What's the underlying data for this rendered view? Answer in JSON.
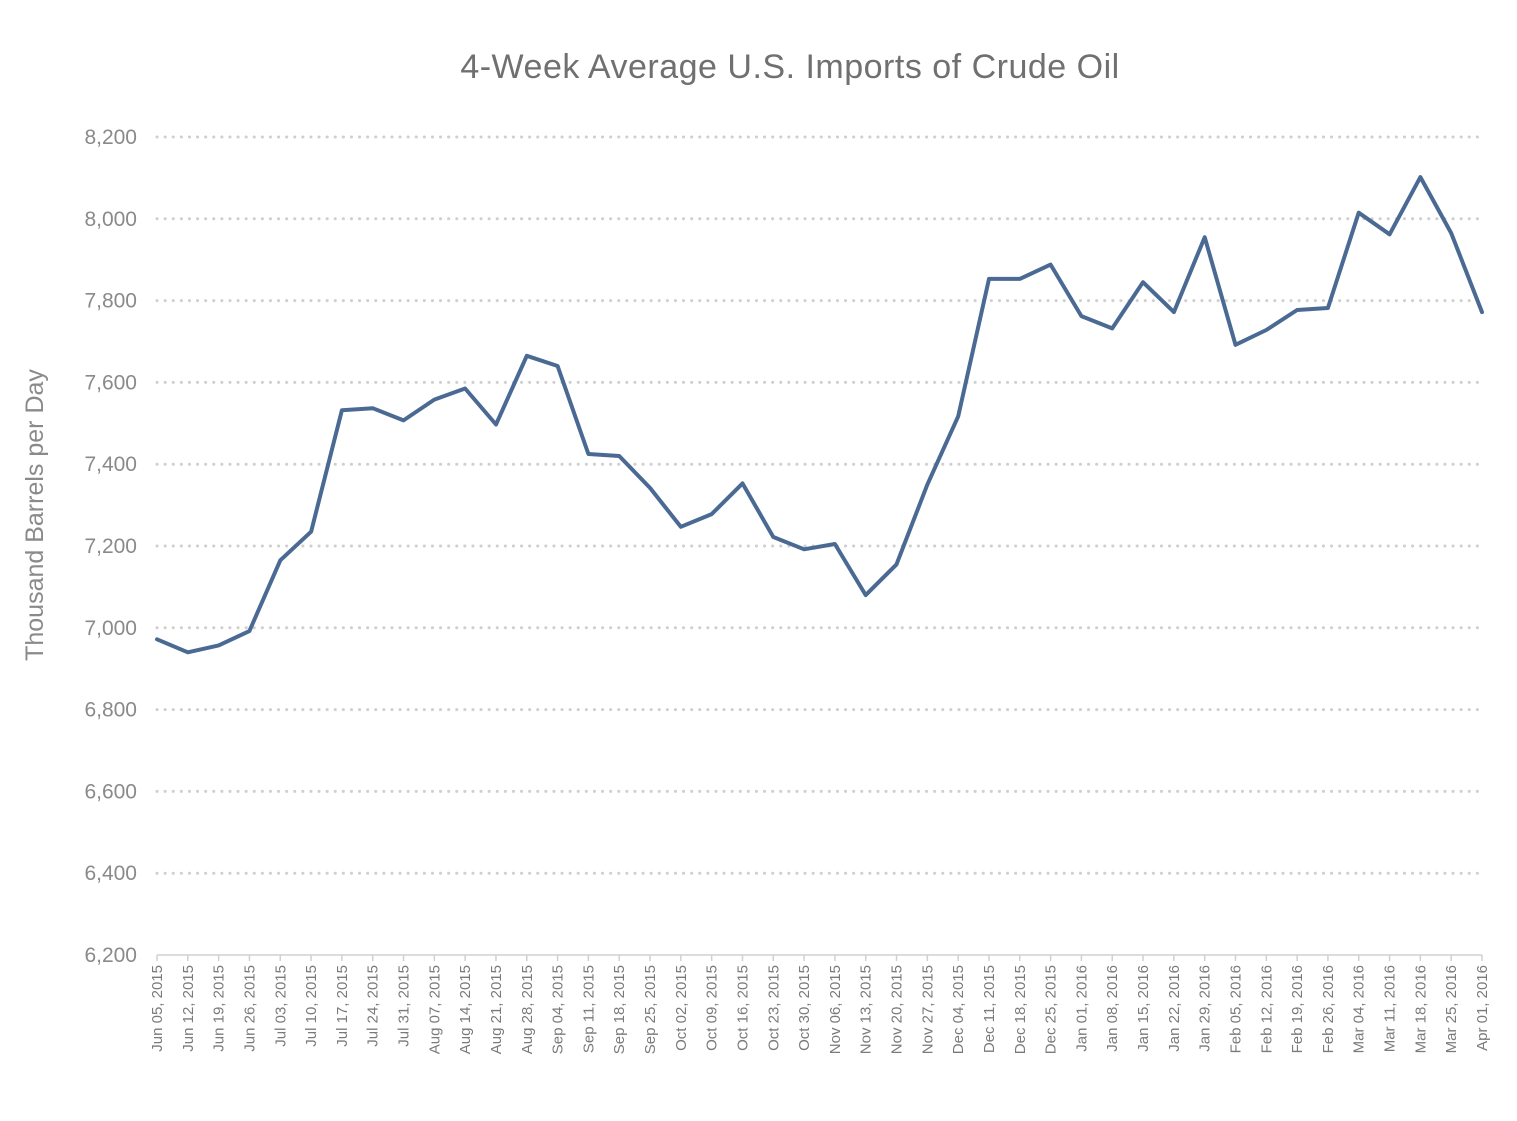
{
  "chart_data": {
    "type": "line",
    "title": "4-Week Average U.S. Imports of Crude Oil",
    "xlabel": "",
    "ylabel": "Thousand Barrels per Day",
    "ylim": [
      6200,
      8200
    ],
    "yticks": [
      6200,
      6400,
      6600,
      6800,
      7000,
      7200,
      7400,
      7600,
      7800,
      8000,
      8200
    ],
    "ytick_labels": [
      "6,200",
      "6,400",
      "6,600",
      "6,800",
      "7,000",
      "7,200",
      "7,400",
      "7,600",
      "7,800",
      "8,000",
      "8,200"
    ],
    "grid": "horizontal dotted",
    "legend": "none",
    "line_color": "#4a6a93",
    "categories": [
      "Jun 05, 2015",
      "Jun 12, 2015",
      "Jun 19, 2015",
      "Jun 26, 2015",
      "Jul 03, 2015",
      "Jul 10, 2015",
      "Jul 17, 2015",
      "Jul 24, 2015",
      "Jul 31, 2015",
      "Aug 07, 2015",
      "Aug 14, 2015",
      "Aug 21, 2015",
      "Aug 28, 2015",
      "Sep 04, 2015",
      "Sep 11, 2015",
      "Sep 18, 2015",
      "Sep 25, 2015",
      "Oct 02, 2015",
      "Oct 09, 2015",
      "Oct 16, 2015",
      "Oct 23, 2015",
      "Oct 30, 2015",
      "Nov 06, 2015",
      "Nov 13, 2015",
      "Nov 20, 2015",
      "Nov 27, 2015",
      "Dec 04, 2015",
      "Dec 11, 2015",
      "Dec 18, 2015",
      "Dec 25, 2015",
      "Jan 01, 2016",
      "Jan 08, 2016",
      "Jan 15, 2016",
      "Jan 22, 2016",
      "Jan 29, 2016",
      "Feb 05, 2016",
      "Feb 12, 2016",
      "Feb 19, 2016",
      "Feb 26, 2016",
      "Mar 04, 2016",
      "Mar 11, 2016",
      "Mar 18, 2016",
      "Mar 25, 2016",
      "Apr 01, 2016"
    ],
    "series": [
      {
        "values": [
          6972,
          6940,
          6957,
          6992,
          7165,
          7235,
          7532,
          7537,
          7507,
          7558,
          7585,
          7497,
          7665,
          7640,
          7425,
          7420,
          7342,
          7247,
          7278,
          7353,
          7222,
          7192,
          7205,
          7080,
          7155,
          7350,
          7517,
          7853,
          7853,
          7888,
          7762,
          7732,
          7845,
          7772,
          7955,
          7692,
          7728,
          7777,
          7782,
          8015,
          7962,
          8102,
          7965,
          7772
        ]
      }
    ]
  }
}
